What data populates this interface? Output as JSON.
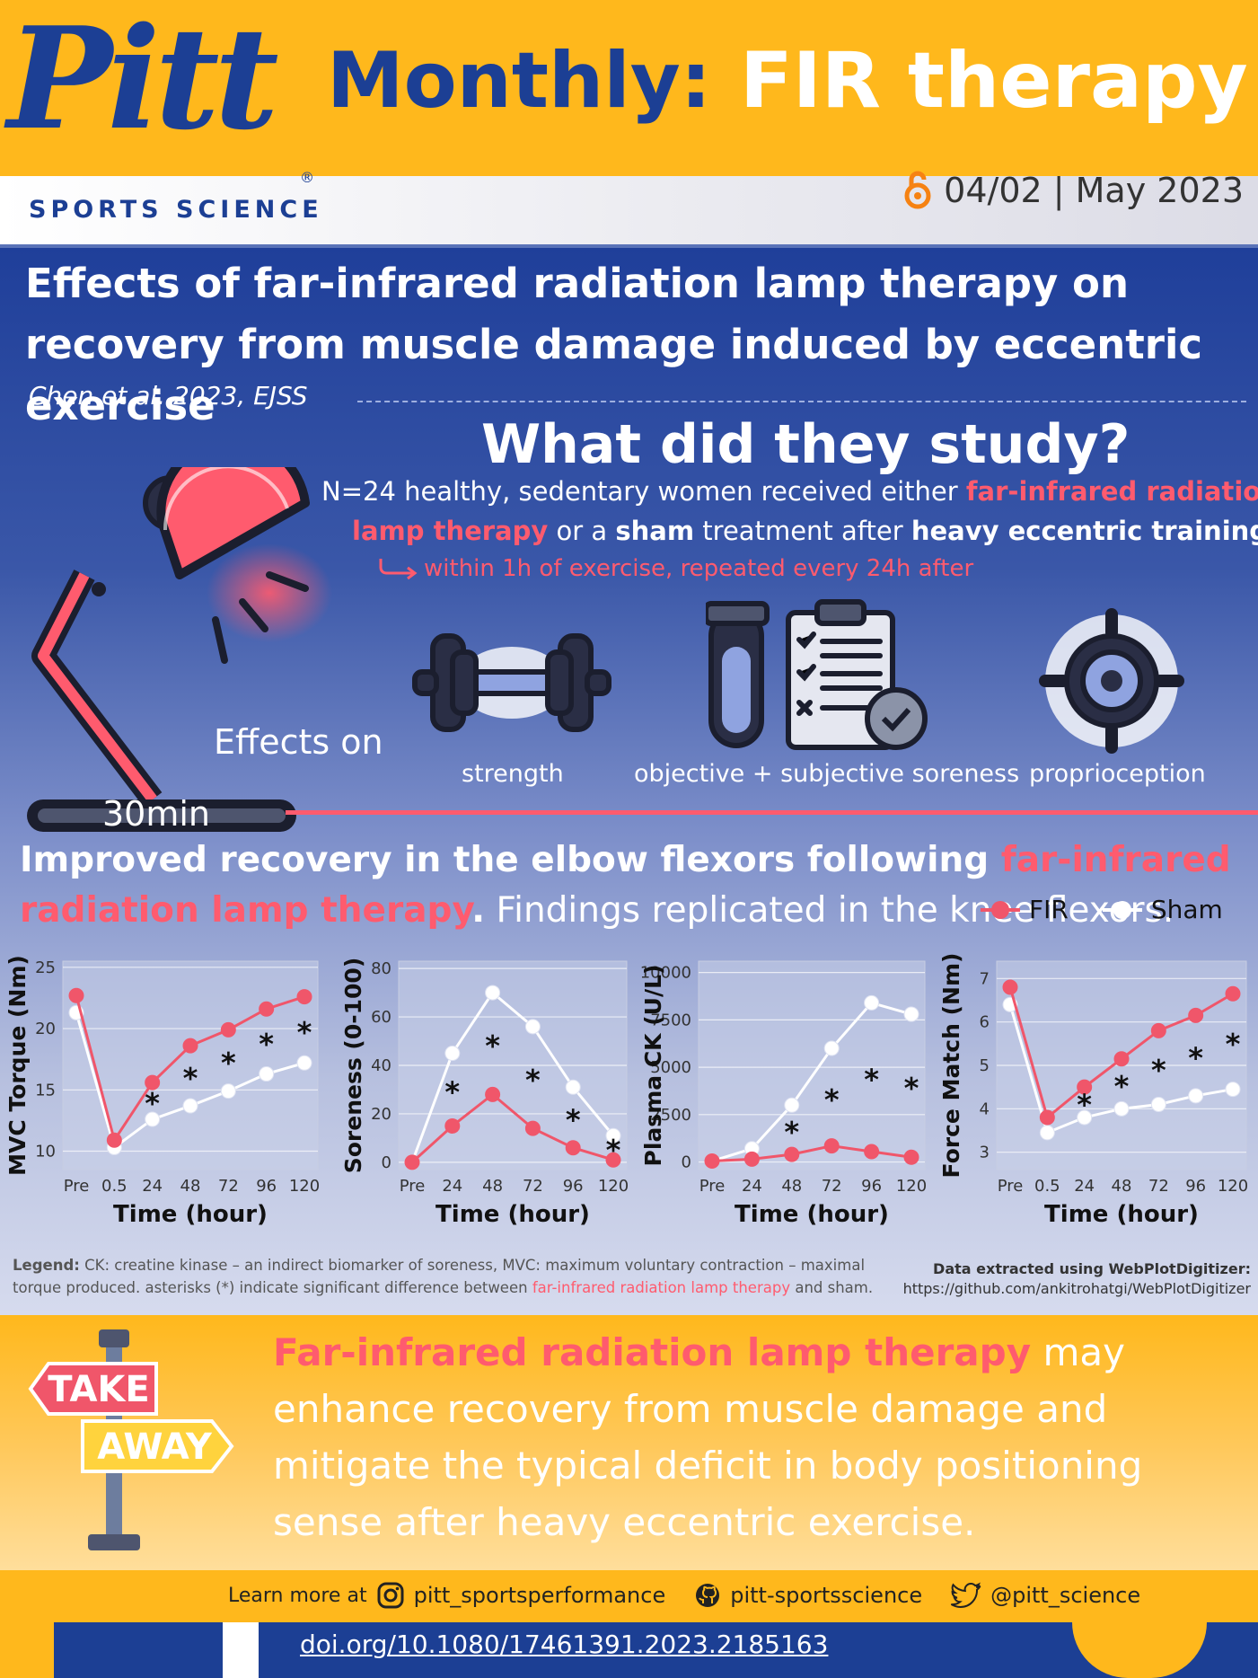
{
  "header": {
    "logo_text": "Pitt",
    "logo_subtitle": "SPORTS SCIENCE",
    "registered_mark": "®",
    "title_part1": "Monthly:",
    "title_part2": "FIR therapy",
    "issue": "04/02 | May 2023"
  },
  "paper": {
    "title": "Effects of far-infrared radiation lamp therapy on recovery from muscle damage induced by eccentric exercise",
    "citation": "Chen et al. 2023, EJSS"
  },
  "study": {
    "heading": "What did they study?",
    "line1_a": "N=24 healthy, sedentary women received either ",
    "line1_b": "far-infrared radiation",
    "line2_a": "lamp therapy",
    "line2_b": " or a ",
    "line2_c": "sham",
    "line2_d": " treatment after ",
    "line2_e": "heavy eccentric training",
    "line3": "within 1h of exercise, repeated every 24h after",
    "duration": "30min",
    "effects_on": "Effects on",
    "effects": [
      "strength",
      "objective + subjective soreness",
      "proprioception"
    ]
  },
  "results": {
    "line_a": "Improved recovery in the elbow flexors following ",
    "line_b": "far-infrared radiation lamp therapy",
    "line_c": ".",
    "line_d": " Findings replicated in the knee flexors.",
    "legend": [
      "FIR",
      "Sham"
    ]
  },
  "colors": {
    "fir": "#f0566a",
    "sham": "#ffffff",
    "pitt_blue": "#1c3f94",
    "pitt_gold": "#ffb81c"
  },
  "chart_data": [
    {
      "type": "line",
      "ylabel": "MVC Torque (Nm)",
      "xlabel": "Time (hour)",
      "categories": [
        "Pre",
        "0.5",
        "24",
        "48",
        "72",
        "96",
        "120"
      ],
      "ylim": [
        8.5,
        25.5
      ],
      "yticks": [
        10,
        15,
        20,
        25
      ],
      "series": [
        {
          "name": "FIR",
          "values": [
            22.7,
            10.9,
            15.6,
            18.6,
            19.9,
            21.6,
            22.6
          ]
        },
        {
          "name": "Sham",
          "values": [
            21.3,
            10.3,
            12.6,
            13.7,
            14.9,
            16.3,
            17.2
          ]
        }
      ],
      "significant": [
        "24",
        "48",
        "72",
        "96",
        "120"
      ],
      "icon": "dumbbell-icon"
    },
    {
      "type": "line",
      "ylabel": "Soreness (0-100)",
      "xlabel": "Time (hour)",
      "categories": [
        "Pre",
        "24",
        "48",
        "72",
        "96",
        "120"
      ],
      "ylim": [
        -3,
        83
      ],
      "yticks": [
        0,
        20,
        40,
        60,
        80
      ],
      "series": [
        {
          "name": "FIR",
          "values": [
            0,
            15,
            28,
            14,
            6,
            1
          ]
        },
        {
          "name": "Sham",
          "values": [
            0,
            45,
            70,
            56,
            31,
            11
          ]
        }
      ],
      "significant": [
        "24",
        "48",
        "72",
        "96",
        "120"
      ],
      "icon": "clipboard-icon"
    },
    {
      "type": "line",
      "ylabel": "Plasma CK (U/L)",
      "xlabel": "Time (hour)",
      "categories": [
        "Pre",
        "24",
        "48",
        "72",
        "96",
        "120"
      ],
      "ylim": [
        -400,
        10600
      ],
      "yticks": [
        0,
        2500,
        5000,
        7500,
        10000
      ],
      "series": [
        {
          "name": "FIR",
          "values": [
            50,
            150,
            400,
            850,
            550,
            250
          ]
        },
        {
          "name": "Sham",
          "values": [
            50,
            700,
            3000,
            6000,
            8400,
            7800
          ]
        }
      ],
      "significant": [
        "48",
        "72",
        "96",
        "120"
      ],
      "icon": "test-tube-icon"
    },
    {
      "type": "line",
      "ylabel": "Force Match (Nm)",
      "xlabel": "Time (hour)",
      "categories": [
        "Pre",
        "0.5",
        "24",
        "48",
        "72",
        "96",
        "120"
      ],
      "ylim": [
        2.6,
        7.4
      ],
      "yticks": [
        3,
        4,
        5,
        6,
        7
      ],
      "series": [
        {
          "name": "FIR",
          "values": [
            6.8,
            3.8,
            4.5,
            5.15,
            5.8,
            6.15,
            6.65
          ]
        },
        {
          "name": "Sham",
          "values": [
            6.4,
            3.45,
            3.8,
            4.0,
            4.1,
            4.3,
            4.45
          ]
        }
      ],
      "significant": [
        "24",
        "48",
        "72",
        "96",
        "120"
      ],
      "icon": "target-icon"
    }
  ],
  "footnote": {
    "legend_label": "Legend:",
    "legend_text_a": " CK: creatine kinase –  an indirect biomarker of soreness, MVC: maximum voluntary contraction – maximal torque produced. asterisks (*) indicate significant difference between ",
    "legend_text_b": "far-infrared radiation lamp therapy",
    "legend_text_c": " and sham.",
    "source_line1": "Data extracted using WebPlotDigitizer:",
    "source_line2": "https://github.com/ankitrohatgi/WebPlotDigitizer"
  },
  "takeaway": {
    "sign_top": "TAKE",
    "sign_bottom": "AWAY",
    "text_a": "Far-infrared radiation lamp therapy",
    "text_b": " may enhance recovery from muscle damage and mitigate the typical deficit in body positioning sense after heavy eccentric exercise."
  },
  "footer": {
    "learn_more": "Learn more at",
    "instagram": "pitt_sportsperformance",
    "github": "pitt-sportsscience",
    "twitter": "@pitt_science",
    "doi": "doi.org/10.1080/17461391.2023.2185163"
  }
}
